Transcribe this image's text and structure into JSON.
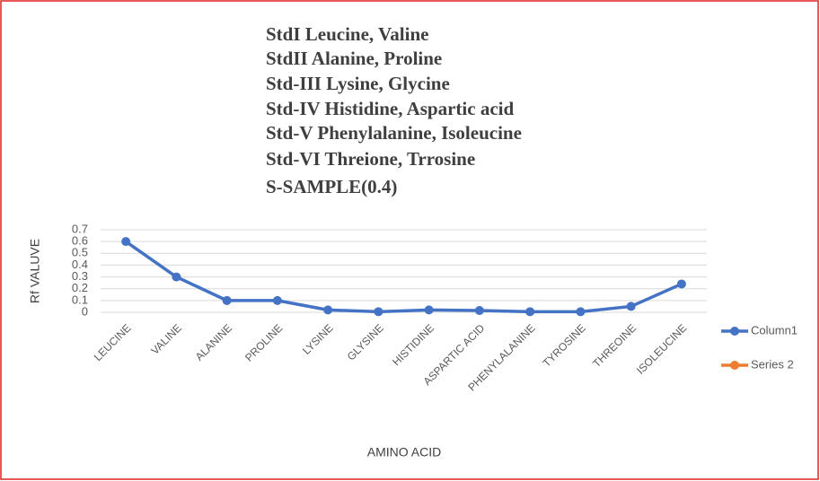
{
  "chart_data": {
    "type": "line",
    "annotations": [
      "StdI  Leucine, Valine",
      "StdII Alanine, Proline",
      "Std-III Lysine, Glycine",
      "Std-IV Histidine, Aspartic acid",
      "Std-V Phenylalanine, Isoleucine",
      "Std-VI Threione, Trrosine",
      "S-SAMPLE(0.4)"
    ],
    "y_label": "Rf VALUVE",
    "x_label": "AMINO ACID",
    "categories": [
      "LEUCINE",
      "VALINE",
      "ALANINE",
      "PROLINE",
      "LYSINE",
      "GLYSINE",
      "HISTIDINE",
      "ASPARTIC ACID",
      "PHENYLALANINE",
      "TYROSINE",
      "THREOINE",
      "ISOLEUCINE"
    ],
    "series": [
      {
        "name": "Column1",
        "color": "#4472c4",
        "values": [
          0.6,
          0.3,
          0.1,
          0.1,
          0.02,
          0.005,
          0.02,
          0.015,
          0.005,
          0.005,
          0.05,
          0.24
        ]
      },
      {
        "name": "Series 2",
        "color": "#ed7d31",
        "values": [
          null,
          null,
          null,
          null,
          null,
          null,
          null,
          null,
          null,
          null,
          null,
          null
        ]
      }
    ],
    "ylim": [
      0,
      0.7
    ],
    "yticks": [
      0,
      0.1,
      0.2,
      0.3,
      0.4,
      0.5,
      0.6,
      0.7
    ],
    "grid": true,
    "legend": "right"
  }
}
